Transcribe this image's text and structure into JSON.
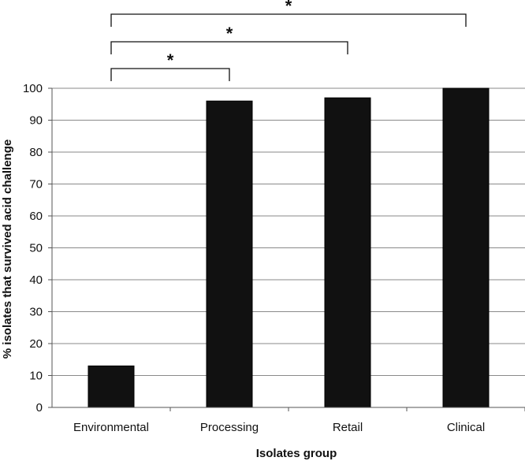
{
  "chart_data": {
    "type": "bar",
    "categories": [
      "Environmental",
      "Processing",
      "Retail",
      "Clinical"
    ],
    "values": [
      13,
      96,
      97,
      100
    ],
    "title": "",
    "xlabel": "Isolates group",
    "ylabel": "% isolates that survived acid challenge",
    "ylim": [
      0,
      100
    ],
    "yticks": [
      0,
      10,
      20,
      30,
      40,
      50,
      60,
      70,
      80,
      90,
      100
    ],
    "grid": true,
    "legend": "none",
    "bar_color": "#111111",
    "significance": [
      {
        "from": "Environmental",
        "to": "Processing",
        "label": "*"
      },
      {
        "from": "Environmental",
        "to": "Retail",
        "label": "*"
      },
      {
        "from": "Environmental",
        "to": "Clinical",
        "label": "*"
      }
    ]
  }
}
